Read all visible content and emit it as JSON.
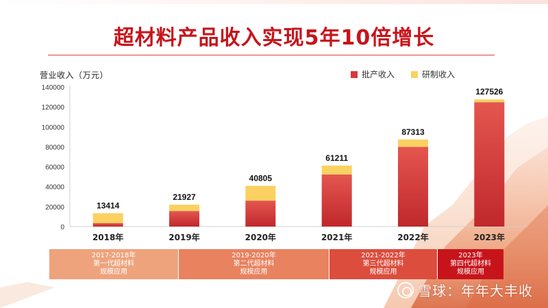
{
  "title": "超材料产品收入实现5年10倍增长",
  "ylabel": "营业收入（万元）",
  "watermark": "雪球：年年大丰收",
  "colors": {
    "title": "#c8141b",
    "batch": "#d9383a",
    "batch_dark": "#b8272b",
    "rd": "#fbd161",
    "axis": "#d0d0d0"
  },
  "periods": [
    {
      "range": "2017-2018年",
      "line1": "第一代超材料",
      "line2": "规模应用",
      "color": "#eea37c"
    },
    {
      "range": "2019-2020年",
      "line1": "第二代超材料",
      "line2": "规模应用",
      "color": "#e8825f"
    },
    {
      "range": "2021-2022年",
      "line1": "第三代超材料",
      "line2": "规模应用",
      "color": "#dc4d3d"
    },
    {
      "range": "2023年",
      "line1": "第四代超材料",
      "line2": "规模应用",
      "color": "#c7141b"
    }
  ],
  "chart_data": {
    "type": "bar",
    "stacked": true,
    "categories": [
      "2018年",
      "2019年",
      "2020年",
      "2021年",
      "2022年",
      "2023年"
    ],
    "totals": [
      13414,
      21927,
      40805,
      61211,
      87313,
      127526
    ],
    "series": [
      {
        "name": "批产收入",
        "color": "#d9383a",
        "values": [
          3400,
          15600,
          26000,
          52200,
          79900,
          124700
        ]
      },
      {
        "name": "研制收入",
        "color": "#fbd161",
        "values": [
          10014,
          6327,
          14805,
          9011,
          7413,
          2826
        ]
      }
    ],
    "ylim": [
      0,
      140000
    ],
    "yticks": [
      0,
      20000,
      40000,
      60000,
      80000,
      100000,
      120000,
      140000
    ],
    "ylabel": "营业收入（万元）",
    "legend": "top-right",
    "grid": false
  }
}
